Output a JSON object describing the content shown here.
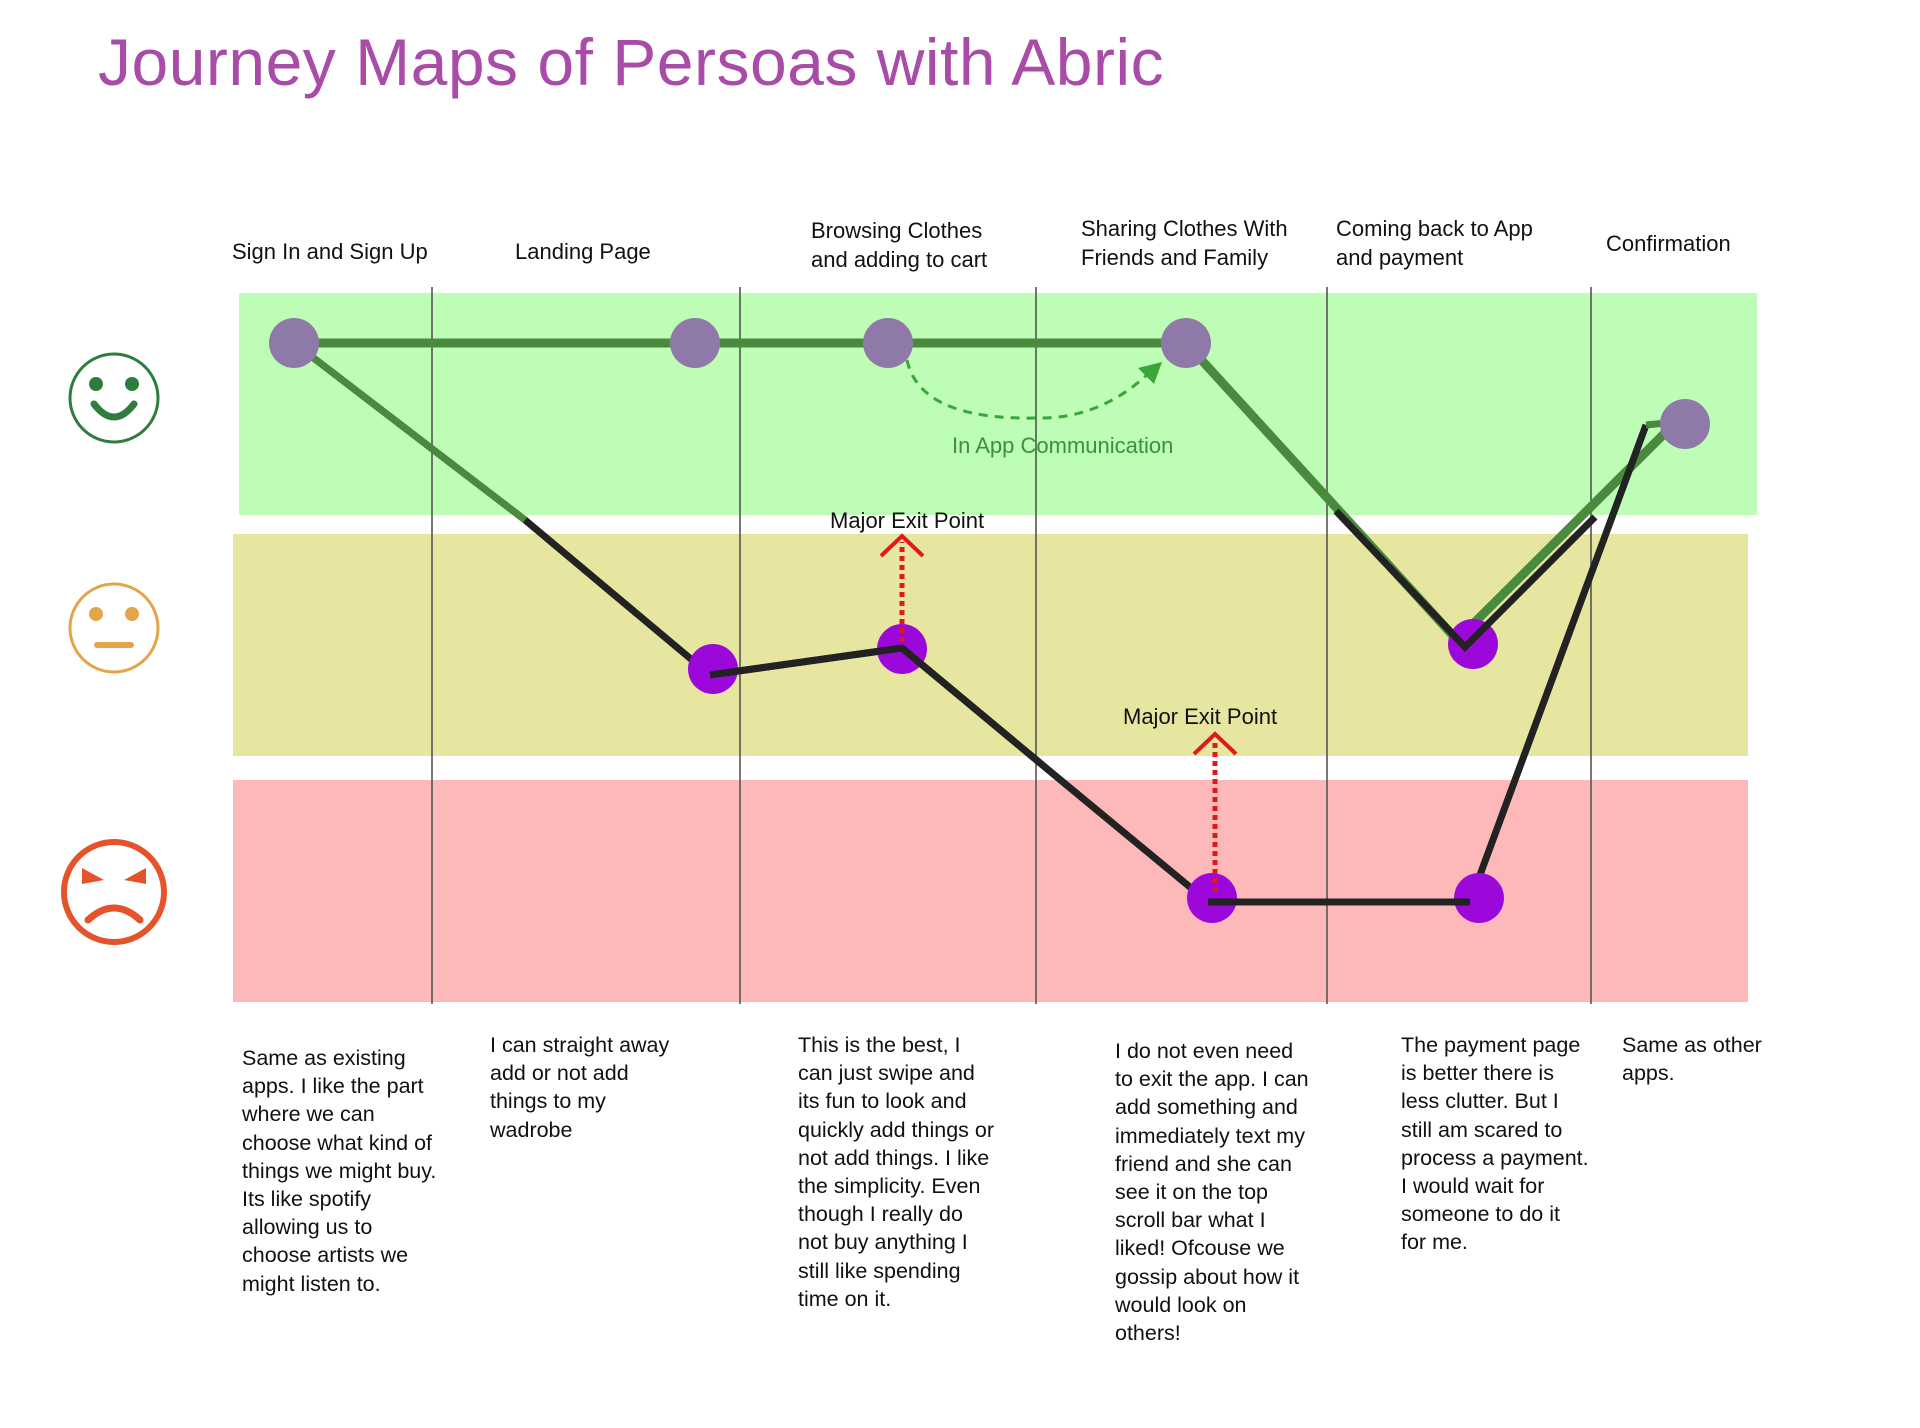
{
  "title": "Journey Maps of Persoas with Abric",
  "stages": [
    {
      "line1": "Sign In and Sign Up",
      "line2": ""
    },
    {
      "line1": "Landing Page",
      "line2": ""
    },
    {
      "line1": "Browsing Clothes",
      "line2": "and adding to cart"
    },
    {
      "line1": "Sharing Clothes With",
      "line2": "Friends and Family"
    },
    {
      "line1": "Coming back to App",
      "line2": "and payment"
    },
    {
      "line1": "Confirmation",
      "line2": ""
    }
  ],
  "annotations": {
    "in_app_communication": "In App Communication",
    "major_exit_point_1": "Major Exit Point",
    "major_exit_point_2": "Major Exit Point"
  },
  "notes": [
    "Same as existing apps. I like the part where we can choose what kind of things we might buy. Its like spotify allowing us to choose artists we might listen to.",
    "I can straight away add or not add things to my wadrobe",
    "This is the best, I can just swipe and its fun to look and quickly add things or not add things. I like the simplicity. Even though I really do not buy anything I still like spending time on it.",
    "I do not even need to exit the app. I can add something and immediately text my friend and she can see it on the top scroll bar what I liked! Ofcouse we gossip about how it would look on others!",
    "The payment page is better there is less clutter. But I still am scared to process a payment. I would wait for someone to do it for me.",
    "Same as other apps."
  ],
  "emotions": [
    {
      "name": "happy",
      "color": "#2e7d3c"
    },
    {
      "name": "neutral",
      "color": "#e3a54a"
    },
    {
      "name": "angry",
      "color": "#e5532a"
    }
  ],
  "colors": {
    "title": "#a84ca8",
    "band_happy": "#bdfdb5",
    "band_neutral": "#e6e6a0",
    "band_angry": "#fdb9b9",
    "persona_a_line": "#4a8a3e",
    "persona_b_line": "#222222",
    "persona_a_point": "#8e79a8",
    "persona_b_point": "#9b08d9",
    "exit_arrow": "#dd1b1b",
    "communication_arrow": "#3aa63a"
  }
}
